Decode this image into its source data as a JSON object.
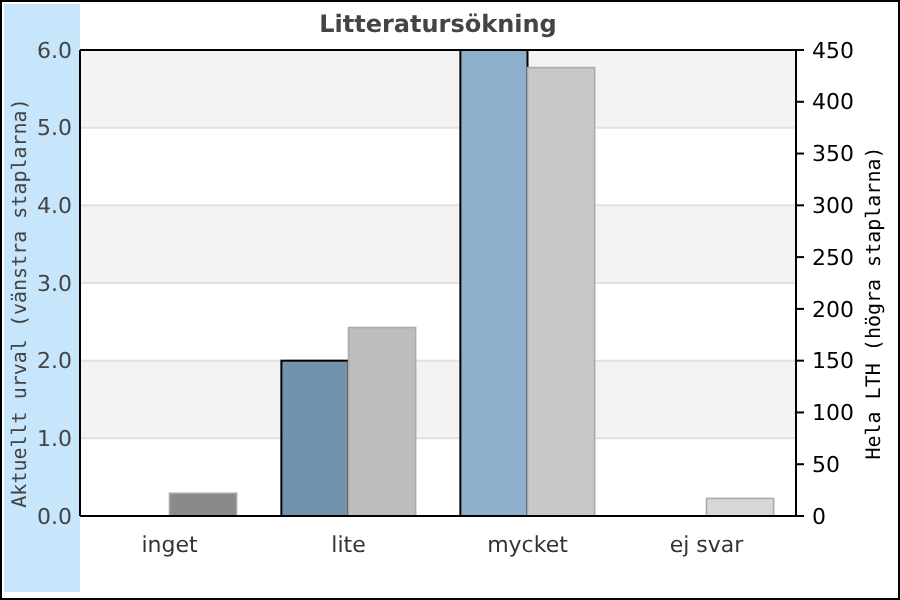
{
  "chart_data": {
    "type": "bar",
    "title": "Litteratursökning",
    "categories": [
      "inget",
      "lite",
      "mycket",
      "ej svar"
    ],
    "series": [
      {
        "values": [
          0,
          2,
          6,
          0
        ],
        "colors": [
          "#7393ad",
          "#7393ad",
          "#8fb0cc",
          "#8fb0cc"
        ]
      },
      {
        "axis": "y2",
        "values": [
          22,
          182,
          433,
          17
        ],
        "colors": [
          "#8a8a8a",
          "#bdbdbd",
          "#c8c8c8",
          "#d8d8d8"
        ]
      }
    ],
    "ylabel": "Aktuellt urval (vänstra staplarna)",
    "y2label": "Hela LTH (högra staplarna)",
    "ylim": [
      0,
      6
    ],
    "yticks": [
      {
        "value": 0,
        "label": "0.0"
      },
      {
        "value": 1,
        "label": "1.0"
      },
      {
        "value": 2,
        "label": "2.0"
      },
      {
        "value": 3,
        "label": "3.0"
      },
      {
        "value": 4,
        "label": "4.0"
      },
      {
        "value": 5,
        "label": "5.0"
      },
      {
        "value": 6,
        "label": "6.0"
      }
    ],
    "y2lim": [
      0,
      450
    ],
    "y2ticks": [
      0,
      50,
      100,
      150,
      200,
      250,
      300,
      350,
      400,
      450
    ],
    "grid": "y"
  }
}
